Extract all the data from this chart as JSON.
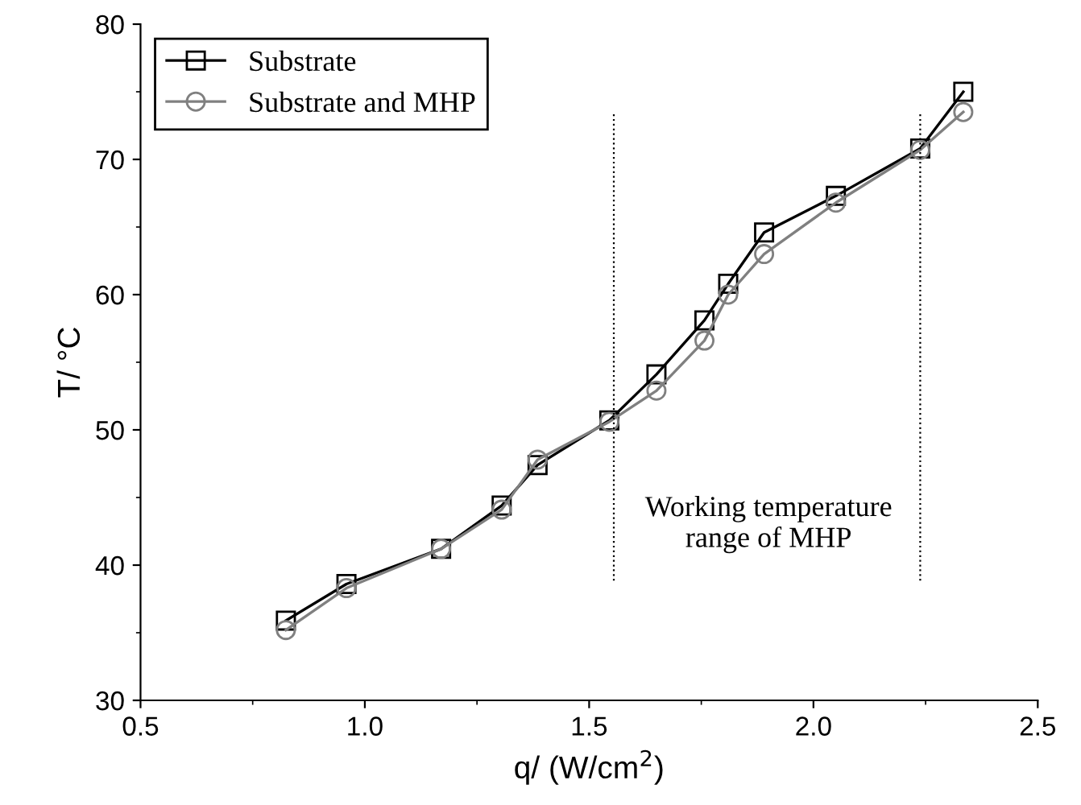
{
  "chart_data": {
    "type": "line",
    "xlabel": "q/ (W/cm$^{2}$)",
    "ylabel": "T/ °C",
    "xlim": [
      0.5,
      2.5
    ],
    "xticks": [
      {
        "value": 0.5,
        "label": "0.5"
      },
      {
        "value": 1.0,
        "label": "1.0"
      },
      {
        "value": 1.5,
        "label": "1.5"
      },
      {
        "value": 2.0,
        "label": "2.0"
      },
      {
        "value": 2.5,
        "label": "2.5"
      }
    ],
    "ylim": [
      30,
      80
    ],
    "yticks": [
      30,
      40,
      50,
      60,
      70,
      80
    ],
    "legend": "top left",
    "grid": false,
    "series": [
      {
        "name": "Substrate",
        "color": "#000000",
        "marker": "square",
        "x": [
          0.824,
          0.959,
          1.17,
          1.305,
          1.385,
          1.545,
          1.65,
          1.757,
          1.81,
          1.89,
          2.05,
          2.238,
          2.334
        ],
        "values": [
          35.9,
          38.6,
          41.2,
          44.4,
          47.4,
          50.7,
          54.1,
          58.1,
          60.8,
          64.6,
          67.3,
          70.8,
          75.0
        ]
      },
      {
        "name": "Substrate and MHP",
        "color": "#808080",
        "marker": "circle",
        "x": [
          0.824,
          0.959,
          1.17,
          1.305,
          1.385,
          1.545,
          1.65,
          1.757,
          1.81,
          1.89,
          2.05,
          2.238,
          2.334
        ],
        "values": [
          35.2,
          38.3,
          41.2,
          44.1,
          47.8,
          50.6,
          52.9,
          56.6,
          60.0,
          63.0,
          66.8,
          70.7,
          73.5
        ]
      }
    ],
    "ref_lines": [
      {
        "axis": "x",
        "value": 1.555,
        "color": "#000000",
        "line_style": "dotted"
      },
      {
        "axis": "x",
        "value": 2.238,
        "color": "#000000",
        "line_style": "dotted"
      }
    ],
    "annotations": [
      "Working temperature\nrange of MHP"
    ]
  }
}
